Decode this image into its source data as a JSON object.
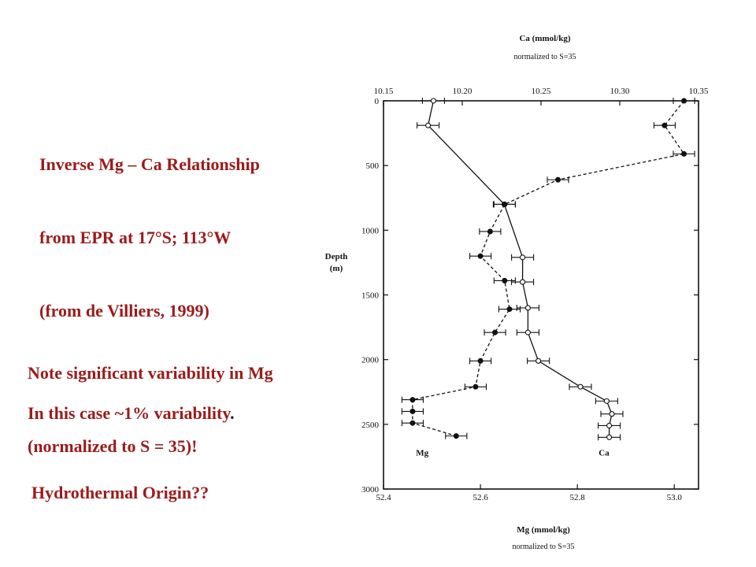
{
  "slide": {
    "title_lines": [
      "Inverse Mg – Ca Relationship",
      "from EPR at 17°S; 113°W",
      "(from de Villiers, 1999)"
    ],
    "note_lines": [
      "Note significant variability in Mg",
      "(normalized to S = 35)!"
    ],
    "variability_text": "In this case ~1% variability",
    "variability_period": ".",
    "hydrothermal_text": "Hydrothermal Origin??"
  },
  "colors": {
    "slide_text": "#9b1b1b",
    "chart_ink": "#111111"
  },
  "chart_data": {
    "type": "line",
    "top_axis": {
      "label": "Ca  (mmol/kg)",
      "sublabel": "normalized to S=35",
      "ticks": [
        "10.15",
        "10.20",
        "10.25",
        "10.30",
        "10.35"
      ],
      "range": [
        10.15,
        10.35
      ]
    },
    "bottom_axis": {
      "label": "Mg  (mmol/kg)",
      "sublabel": "normalized to S=35",
      "ticks": [
        "52.4",
        "52.6",
        "52.8",
        "53.0"
      ],
      "range": [
        52.4,
        53.05
      ]
    },
    "y_axis": {
      "label_line1": "Depth",
      "label_line2": "(m)",
      "ticks": [
        "0",
        "500",
        "1000",
        "1500",
        "2000",
        "2500",
        "3000"
      ],
      "range": [
        0,
        3000
      ],
      "inverted": true
    },
    "series": [
      {
        "name": "Ca",
        "axis": "top",
        "marker": "open-circle",
        "line": "solid",
        "error": 0.007,
        "points": [
          {
            "x": 10.1817,
            "depth": 0
          },
          {
            "x": 10.1783,
            "depth": 190
          },
          {
            "x": 10.2267,
            "depth": 800
          },
          {
            "x": 10.2383,
            "depth": 1210
          },
          {
            "x": 10.2383,
            "depth": 1400
          },
          {
            "x": 10.2417,
            "depth": 1600
          },
          {
            "x": 10.2417,
            "depth": 1790
          },
          {
            "x": 10.2483,
            "depth": 2010
          },
          {
            "x": 10.275,
            "depth": 2210
          },
          {
            "x": 10.2917,
            "depth": 2320
          },
          {
            "x": 10.295,
            "depth": 2420
          },
          {
            "x": 10.2933,
            "depth": 2510
          },
          {
            "x": 10.2933,
            "depth": 2600
          }
        ],
        "label_pos": {
          "x": 10.29,
          "depth": 2740
        }
      },
      {
        "name": "Mg",
        "axis": "bottom",
        "marker": "filled-circle",
        "line": "dashed",
        "error": 0.022,
        "points": [
          {
            "x": 53.02,
            "depth": 0
          },
          {
            "x": 52.98,
            "depth": 190
          },
          {
            "x": 53.02,
            "depth": 410
          },
          {
            "x": 52.76,
            "depth": 610
          },
          {
            "x": 52.65,
            "depth": 800
          },
          {
            "x": 52.62,
            "depth": 1010
          },
          {
            "x": 52.6,
            "depth": 1200
          },
          {
            "x": 52.65,
            "depth": 1390
          },
          {
            "x": 52.66,
            "depth": 1610
          },
          {
            "x": 52.63,
            "depth": 1790
          },
          {
            "x": 52.6,
            "depth": 2010
          },
          {
            "x": 52.59,
            "depth": 2210
          },
          {
            "x": 52.46,
            "depth": 2310
          },
          {
            "x": 52.46,
            "depth": 2400
          },
          {
            "x": 52.46,
            "depth": 2490
          },
          {
            "x": 52.55,
            "depth": 2590
          }
        ],
        "label_pos": {
          "x": 52.48,
          "depth": 2740
        }
      }
    ]
  }
}
